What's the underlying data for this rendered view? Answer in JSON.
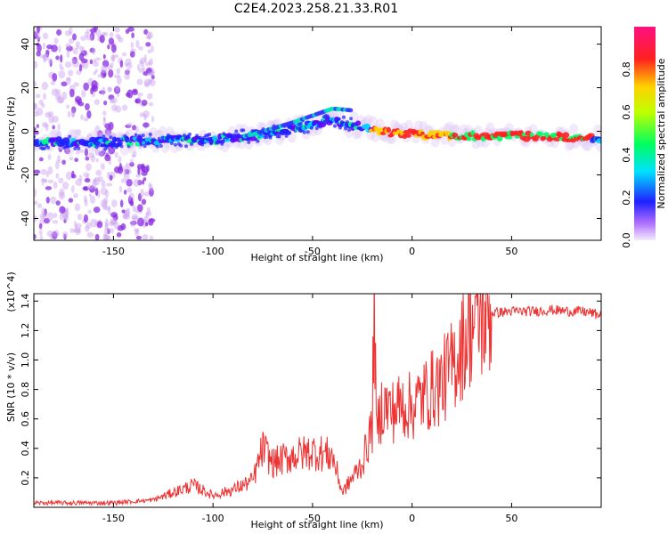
{
  "title": "C2E4.2023.258.21.33.R01",
  "chart_data": [
    {
      "type": "heatmap",
      "xlabel": "Height of straight line (km)",
      "ylabel": "Frequency (Hz)",
      "xlim": [
        -190,
        95
      ],
      "ylim": [
        -50,
        48
      ],
      "x_ticks": [
        -150,
        -100,
        -50,
        0,
        50
      ],
      "y_ticks": [
        -40,
        -20,
        0,
        20,
        40
      ],
      "colorbar": {
        "label": "Normalized spectral amplitude",
        "range": [
          0,
          1
        ],
        "ticks": [
          0.0,
          0.2,
          0.4,
          0.6,
          0.8
        ],
        "tick_labels": [
          "0.0",
          "0.2",
          "0.4",
          "0.6",
          "0.8"
        ]
      },
      "signal_track": {
        "x": [
          -190,
          -150,
          -130,
          -100,
          -80,
          -60,
          -40,
          -30,
          -20,
          -10,
          0,
          20,
          50,
          90
        ],
        "y": [
          -5,
          -5,
          -4,
          -4,
          -2,
          1,
          5,
          3,
          1,
          -1,
          -1,
          -2,
          -2,
          -3
        ]
      }
    },
    {
      "type": "line",
      "xlabel": "Height of straight line (km)",
      "ylabel": "SNR (10 * v/v)",
      "y_multiplier": "(x10^4)",
      "xlim": [
        -190,
        95
      ],
      "ylim": [
        0,
        14500
      ],
      "x_ticks": [
        -150,
        -100,
        -50,
        0,
        50
      ],
      "y_ticks": [
        2000,
        4000,
        6000,
        8000,
        10000,
        12000,
        14000
      ],
      "y_tick_labels": [
        "0.2",
        "0.4",
        "0.6",
        "0.8",
        "1.0",
        "1.2",
        "1.4"
      ],
      "series": [
        {
          "color": "#ee3333",
          "x": [
            -190,
            -170,
            -150,
            -140,
            -130,
            -120,
            -110,
            -100,
            -90,
            -80,
            -75,
            -70,
            -60,
            -50,
            -40,
            -35,
            -30,
            -25,
            -20,
            -19,
            -18,
            -15,
            -10,
            -5,
            0,
            5,
            10,
            15,
            20,
            25,
            30,
            40,
            50,
            60,
            70,
            80,
            85,
            90,
            95
          ],
          "y": [
            300,
            300,
            300,
            400,
            500,
            1000,
            1500,
            800,
            1200,
            1800,
            4000,
            3000,
            3500,
            3800,
            3500,
            1000,
            2000,
            3000,
            5500,
            15000,
            5000,
            7000,
            6500,
            7000,
            6800,
            7500,
            8000,
            8500,
            9500,
            11000,
            12500,
            13200,
            13300,
            13300,
            13400,
            13300,
            13300,
            13200,
            13000
          ]
        }
      ]
    }
  ]
}
